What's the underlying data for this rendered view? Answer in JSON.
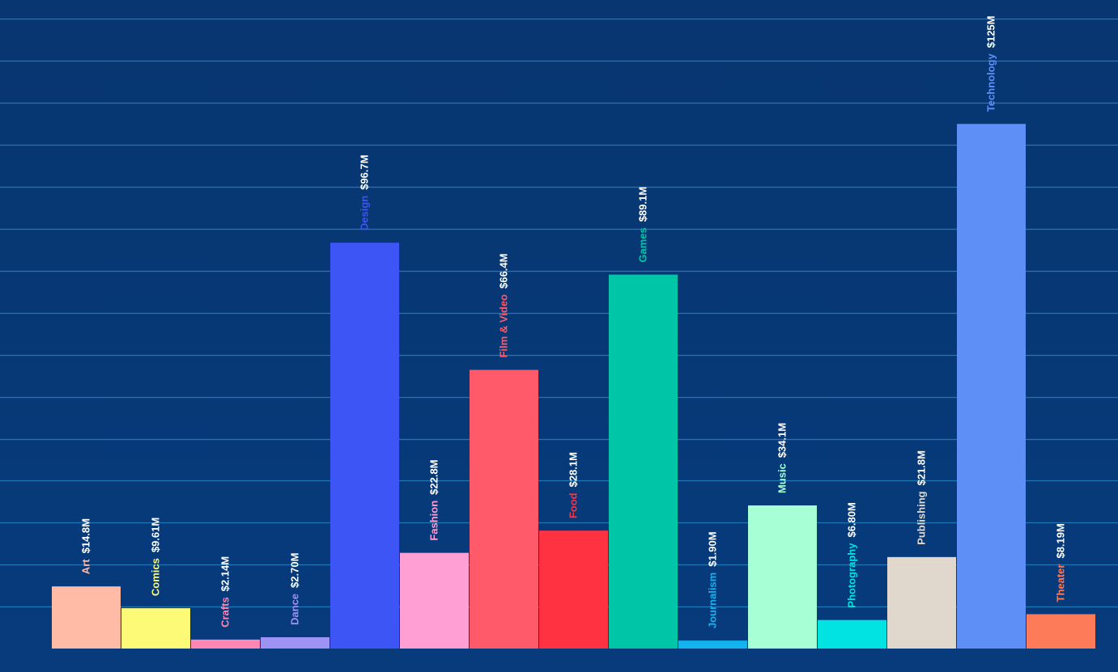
{
  "chart_data": {
    "type": "bar",
    "categories": [
      "Art",
      "Comics",
      "Crafts",
      "Dance",
      "Design",
      "Fashion",
      "Film & Video",
      "Food",
      "Games",
      "Journalism",
      "Music",
      "Photography",
      "Publishing",
      "Technology",
      "Theater"
    ],
    "values": [
      14.8,
      9.61,
      2.14,
      2.7,
      96.7,
      22.8,
      66.4,
      28.1,
      89.1,
      1.9,
      34.1,
      6.8,
      21.8,
      125,
      8.19
    ],
    "value_labels": [
      "$14.8M",
      "$9.61M",
      "$2.14M",
      "$2.70M",
      "$96.7M",
      "$22.8M",
      "$66.4M",
      "$28.1M",
      "$89.1M",
      "$1.90M",
      "$34.1M",
      "$6.80M",
      "$21.8M",
      "$125M",
      "$8.19M"
    ],
    "colors": [
      "#ffbba5",
      "#fdfa78",
      "#ff86b4",
      "#9d93f5",
      "#3d55f4",
      "#ff9fd3",
      "#ff5a6a",
      "#ff3242",
      "#00c5a7",
      "#12b3ef",
      "#a6ffd5",
      "#00e3e3",
      "#e0d8cd",
      "#5e8ff7",
      "#fe7b5a"
    ],
    "value_label_color": "#ffffff",
    "background_color": "#073a7a",
    "gridline_color": "#1e77b4",
    "ylim": [
      0,
      160
    ],
    "grid": true,
    "gridline_step": 10,
    "title": "",
    "xlabel": "",
    "ylabel": ""
  }
}
